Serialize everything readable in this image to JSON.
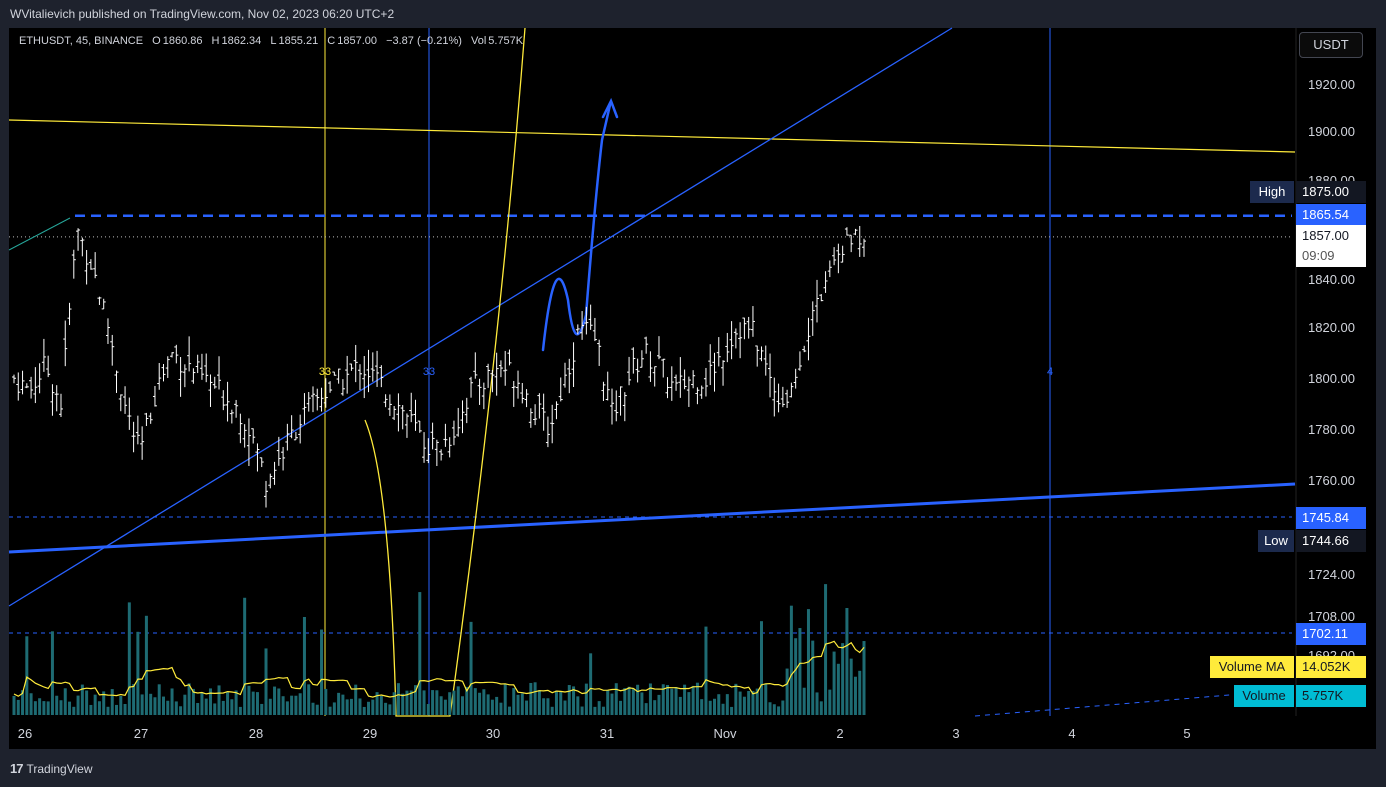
{
  "publisher": "WVitalievich published on TradingView.com, Nov 02, 2023 06:20 UTC+2",
  "legend": {
    "symbol": "ETHUSDT, 45, BINANCE",
    "open_label": "O",
    "open": "1860.86",
    "high_label": "H",
    "high": "1862.34",
    "low_label": "L",
    "low": "1855.21",
    "close_label": "C",
    "close": "1857.00",
    "change": "−3.87 (−0.21%)",
    "vol_label": "Vol",
    "vol": "5.757K"
  },
  "currency_button": "USDT",
  "brand": "TradingView",
  "colors": {
    "background": "#000000",
    "candle": "#ffffff",
    "blue_line": "#2962ff",
    "yellow_line": "#ffeb3b",
    "volume_bar": "#26a69a",
    "volume_ma_label": "#ffeb3b",
    "volume_label": "#00bcd4"
  },
  "chart_data": {
    "type": "candlestick",
    "symbol": "ETHUSDT",
    "interval": "45",
    "exchange": "BINANCE",
    "y_ticks": [
      "1920.00",
      "1900.00",
      "1880.00",
      "1840.00",
      "1820.00",
      "1800.00",
      "1780.00",
      "1760.00",
      "1724.00",
      "1708.00",
      "1692.00"
    ],
    "x_ticks": [
      "26",
      "27",
      "28",
      "29",
      "30",
      "31",
      "Nov",
      "2",
      "3",
      "4",
      "5"
    ],
    "ylim": [
      1685,
      1935
    ],
    "price_scale": "non-linear (lower section compressed)",
    "price_labels": [
      {
        "text": "1875.00",
        "tag": "High",
        "style": "dark"
      },
      {
        "text": "1865.54",
        "tag": "",
        "style": "blue"
      },
      {
        "text": "1857.00",
        "sub": "09:09",
        "tag": "",
        "style": "white"
      },
      {
        "text": "1745.84",
        "tag": "",
        "style": "blue"
      },
      {
        "text": "1744.66",
        "tag": "Low",
        "style": "dark"
      },
      {
        "text": "1702.11",
        "tag": "",
        "style": "blue"
      },
      {
        "text": "14.052K",
        "tag": "Volume MA",
        "style": "yellow"
      },
      {
        "text": "5.757K",
        "tag": "Volume",
        "style": "cyan"
      }
    ],
    "vertical_markers": [
      {
        "label": "33",
        "color": "yellow",
        "at": "Oct 28"
      },
      {
        "label": "33",
        "color": "blue",
        "at": "Oct 29"
      },
      {
        "label": "4",
        "color": "blue",
        "at": "Nov 3"
      }
    ],
    "approx_close_path": [
      1800,
      1795,
      1805,
      1790,
      1860,
      1845,
      1820,
      1790,
      1770,
      1795,
      1810,
      1805,
      1800,
      1795,
      1790,
      1780,
      1760,
      1770,
      1782,
      1790,
      1796,
      1800,
      1805,
      1800,
      1792,
      1785,
      1775,
      1772,
      1780,
      1795,
      1800,
      1805,
      1800,
      1788,
      1780,
      1800,
      1820,
      1815,
      1785,
      1800,
      1810,
      1805,
      1795,
      1800,
      1800,
      1810,
      1820,
      1818,
      1800,
      1790,
      1810,
      1830,
      1845,
      1855,
      1857
    ]
  }
}
